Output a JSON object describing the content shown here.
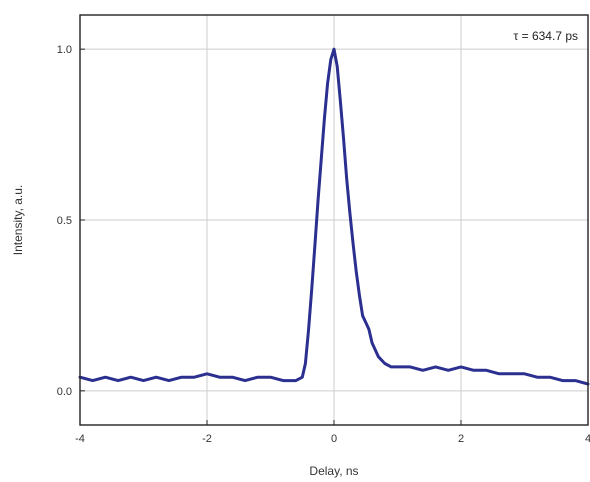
{
  "chart_data": {
    "type": "line",
    "title": "",
    "xlabel": "Delay, ns",
    "ylabel": "Intensity, a.u.",
    "xlim": [
      -4,
      4
    ],
    "ylim": [
      -0.1,
      1.1
    ],
    "x_ticks": [
      -4,
      -2,
      0,
      2,
      4
    ],
    "y_ticks": [
      0.0,
      0.5,
      1.0
    ],
    "x_tick_labels": [
      "-4",
      "-2",
      "0",
      "2",
      "4"
    ],
    "y_tick_labels": [
      "0.0",
      "0.5",
      "1.0"
    ],
    "grid": true,
    "annotation": "τ = 634.7 ps",
    "line_color": "#2b2f8f",
    "series": [
      {
        "x": [
          -4.0,
          -3.8,
          -3.6,
          -3.4,
          -3.2,
          -3.0,
          -2.8,
          -2.6,
          -2.4,
          -2.2,
          -2.0,
          -1.8,
          -1.6,
          -1.4,
          -1.2,
          -1.0,
          -0.8,
          -0.6,
          -0.5,
          -0.45,
          -0.4,
          -0.35,
          -0.3,
          -0.25,
          -0.2,
          -0.15,
          -0.1,
          -0.05,
          0.0,
          0.05,
          0.1,
          0.15,
          0.2,
          0.25,
          0.3,
          0.35,
          0.4,
          0.45,
          0.5,
          0.55,
          0.6,
          0.7,
          0.8,
          0.9,
          1.0,
          1.2,
          1.4,
          1.6,
          1.8,
          2.0,
          2.2,
          2.4,
          2.6,
          2.8,
          3.0,
          3.2,
          3.4,
          3.6,
          3.8,
          4.0
        ],
        "y": [
          0.04,
          0.03,
          0.04,
          0.03,
          0.04,
          0.03,
          0.04,
          0.03,
          0.04,
          0.04,
          0.05,
          0.04,
          0.04,
          0.03,
          0.04,
          0.04,
          0.03,
          0.03,
          0.04,
          0.08,
          0.18,
          0.3,
          0.43,
          0.56,
          0.68,
          0.8,
          0.9,
          0.97,
          1.0,
          0.95,
          0.85,
          0.74,
          0.62,
          0.52,
          0.43,
          0.35,
          0.28,
          0.22,
          0.2,
          0.18,
          0.14,
          0.1,
          0.08,
          0.07,
          0.07,
          0.07,
          0.06,
          0.07,
          0.06,
          0.07,
          0.06,
          0.06,
          0.05,
          0.05,
          0.05,
          0.04,
          0.04,
          0.03,
          0.03,
          0.02
        ]
      }
    ]
  }
}
